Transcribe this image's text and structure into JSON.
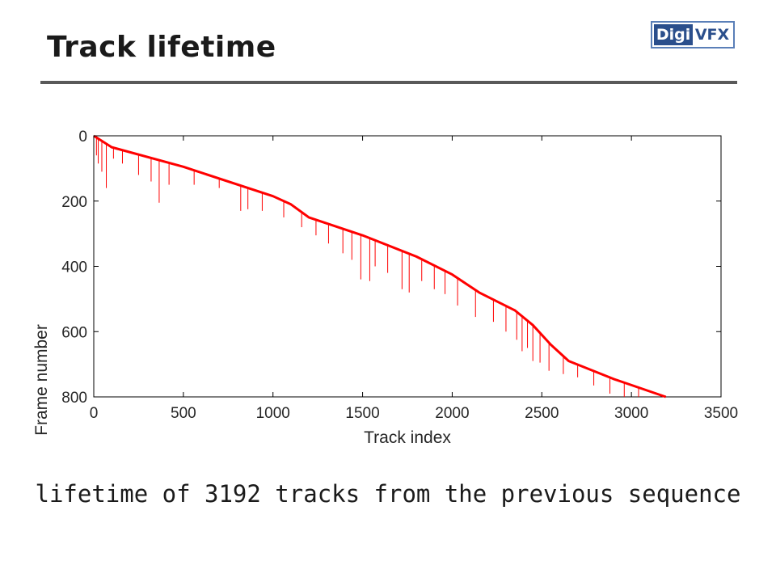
{
  "slide": {
    "title": "Track lifetime",
    "caption": "lifetime of 3192 tracks from the previous sequence"
  },
  "logo": {
    "part1": "Digi",
    "part2": "VFX",
    "dark_color": "#2b4f8c",
    "border_color": "#5a7fb8"
  },
  "chart_data": {
    "type": "line",
    "xlabel": "Track index",
    "ylabel": "Frame number",
    "xlim": [
      0,
      3500
    ],
    "ylim": [
      0,
      800
    ],
    "y_reversed": true,
    "xticks": [
      0,
      500,
      1000,
      1500,
      2000,
      2500,
      3000,
      3500
    ],
    "yticks": [
      0,
      200,
      400,
      600,
      800
    ],
    "grid": false,
    "series": [
      {
        "color": "#ff0000",
        "x": [
          0,
          100,
          500,
          1000,
          1100,
          1200,
          1500,
          1800,
          2000,
          2150,
          2350,
          2450,
          2550,
          2650,
          2900,
          3192
        ],
        "y": [
          0,
          35,
          95,
          185,
          210,
          250,
          305,
          370,
          425,
          480,
          535,
          580,
          640,
          690,
          745,
          800
        ]
      }
    ],
    "spikes": [
      {
        "x": 15,
        "y": 60
      },
      {
        "x": 25,
        "y": 85
      },
      {
        "x": 45,
        "y": 110
      },
      {
        "x": 70,
        "y": 160
      },
      {
        "x": 110,
        "y": 70
      },
      {
        "x": 160,
        "y": 85
      },
      {
        "x": 250,
        "y": 120
      },
      {
        "x": 320,
        "y": 140
      },
      {
        "x": 365,
        "y": 205
      },
      {
        "x": 420,
        "y": 150
      },
      {
        "x": 560,
        "y": 150
      },
      {
        "x": 700,
        "y": 160
      },
      {
        "x": 820,
        "y": 230
      },
      {
        "x": 860,
        "y": 225
      },
      {
        "x": 940,
        "y": 230
      },
      {
        "x": 1060,
        "y": 250
      },
      {
        "x": 1160,
        "y": 280
      },
      {
        "x": 1240,
        "y": 305
      },
      {
        "x": 1310,
        "y": 330
      },
      {
        "x": 1390,
        "y": 360
      },
      {
        "x": 1440,
        "y": 380
      },
      {
        "x": 1490,
        "y": 440
      },
      {
        "x": 1540,
        "y": 445
      },
      {
        "x": 1570,
        "y": 400
      },
      {
        "x": 1640,
        "y": 420
      },
      {
        "x": 1720,
        "y": 470
      },
      {
        "x": 1760,
        "y": 480
      },
      {
        "x": 1830,
        "y": 445
      },
      {
        "x": 1900,
        "y": 470
      },
      {
        "x": 1960,
        "y": 485
      },
      {
        "x": 2030,
        "y": 520
      },
      {
        "x": 2130,
        "y": 555
      },
      {
        "x": 2230,
        "y": 570
      },
      {
        "x": 2300,
        "y": 600
      },
      {
        "x": 2360,
        "y": 625
      },
      {
        "x": 2390,
        "y": 660
      },
      {
        "x": 2420,
        "y": 650
      },
      {
        "x": 2450,
        "y": 690
      },
      {
        "x": 2490,
        "y": 695
      },
      {
        "x": 2540,
        "y": 720
      },
      {
        "x": 2620,
        "y": 730
      },
      {
        "x": 2700,
        "y": 740
      },
      {
        "x": 2790,
        "y": 765
      },
      {
        "x": 2880,
        "y": 790
      },
      {
        "x": 2960,
        "y": 800
      },
      {
        "x": 3040,
        "y": 800
      }
    ]
  }
}
